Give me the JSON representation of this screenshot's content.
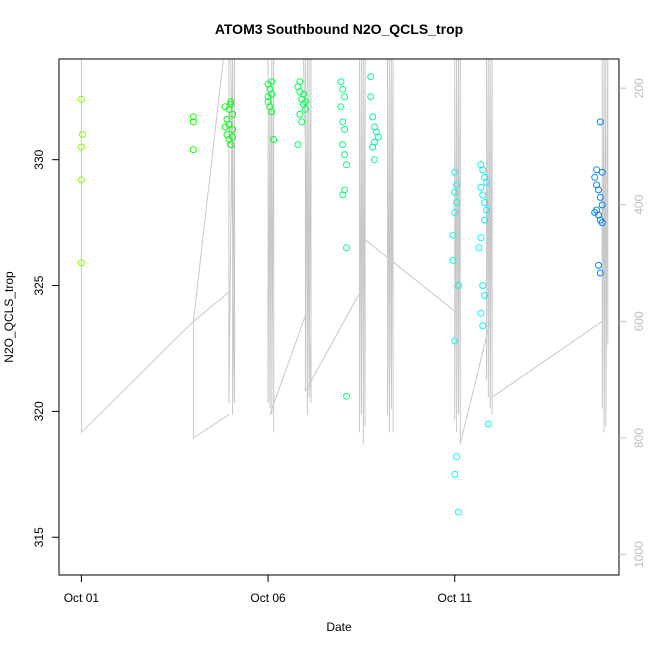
{
  "chart_data": {
    "type": "scatter",
    "title": "ATOM3 Southbound N2O_QCLS_trop",
    "xlabel": "Date",
    "ylabel": "N2O_QCLS_trop",
    "x_unit": "days after Oct 01",
    "xlim": [
      -0.6,
      14.4
    ],
    "ylim": [
      313.5,
      334
    ],
    "y2lim": [
      1035,
      150
    ],
    "x_ticks": [
      {
        "label": "Oct 01",
        "value": 0
      },
      {
        "label": "Oct 06",
        "value": 5
      },
      {
        "label": "Oct 11",
        "value": 10
      }
    ],
    "y_ticks": [
      {
        "label": "315",
        "value": 315
      },
      {
        "label": "320",
        "value": 320
      },
      {
        "label": "325",
        "value": 325
      },
      {
        "label": "330",
        "value": 330
      }
    ],
    "y2_ticks": [
      {
        "label": "200",
        "value": 200
      },
      {
        "label": "400",
        "value": 400
      },
      {
        "label": "600",
        "value": 600
      },
      {
        "label": "800",
        "value": 800
      },
      {
        "label": "1000",
        "value": 1000
      }
    ],
    "points": [
      [
        0.0,
        332.4
      ],
      [
        0.03,
        331.0
      ],
      [
        0.0,
        330.5
      ],
      [
        0.0,
        329.2
      ],
      [
        0.0,
        325.9
      ],
      [
        3.0,
        331.7
      ],
      [
        3.0,
        331.5
      ],
      [
        3.0,
        330.4
      ],
      [
        3.85,
        331.3
      ],
      [
        3.9,
        331.6
      ],
      [
        3.95,
        332.0
      ],
      [
        4.0,
        332.2
      ],
      [
        4.05,
        331.8
      ],
      [
        3.9,
        331.0
      ],
      [
        3.95,
        330.8
      ],
      [
        4.0,
        330.6
      ],
      [
        4.05,
        331.2
      ],
      [
        3.85,
        332.1
      ],
      [
        4.0,
        332.3
      ],
      [
        4.05,
        330.9
      ],
      [
        3.95,
        331.4
      ],
      [
        5.0,
        333.0
      ],
      [
        5.05,
        332.8
      ],
      [
        5.1,
        332.6
      ],
      [
        5.0,
        332.3
      ],
      [
        5.05,
        332.1
      ],
      [
        5.1,
        331.9
      ],
      [
        5.0,
        332.5
      ],
      [
        5.15,
        330.8
      ],
      [
        5.1,
        333.1
      ],
      [
        5.8,
        332.9
      ],
      [
        5.85,
        332.7
      ],
      [
        5.9,
        332.4
      ],
      [
        5.95,
        332.2
      ],
      [
        6.0,
        332.0
      ],
      [
        5.85,
        331.8
      ],
      [
        5.9,
        331.5
      ],
      [
        5.95,
        332.6
      ],
      [
        6.0,
        332.3
      ],
      [
        5.8,
        330.6
      ],
      [
        5.85,
        333.1
      ],
      [
        6.95,
        333.1
      ],
      [
        7.0,
        332.8
      ],
      [
        7.05,
        332.5
      ],
      [
        6.95,
        332.1
      ],
      [
        7.0,
        331.5
      ],
      [
        7.05,
        331.2
      ],
      [
        7.0,
        330.6
      ],
      [
        7.05,
        330.2
      ],
      [
        7.1,
        329.8
      ],
      [
        7.05,
        328.8
      ],
      [
        7.0,
        328.6
      ],
      [
        7.1,
        326.5
      ],
      [
        7.1,
        320.6
      ],
      [
        7.75,
        333.3
      ],
      [
        7.8,
        331.7
      ],
      [
        7.85,
        331.3
      ],
      [
        7.9,
        331.1
      ],
      [
        7.95,
        330.9
      ],
      [
        7.85,
        330.7
      ],
      [
        7.75,
        332.5
      ],
      [
        7.8,
        330.5
      ],
      [
        7.85,
        330.0
      ],
      [
        10.0,
        329.5
      ],
      [
        10.05,
        329.0
      ],
      [
        10.0,
        328.7
      ],
      [
        10.05,
        328.3
      ],
      [
        10.0,
        327.9
      ],
      [
        10.1,
        325.0
      ],
      [
        10.0,
        322.8
      ],
      [
        10.05,
        318.2
      ],
      [
        10.0,
        317.5
      ],
      [
        10.1,
        316.0
      ],
      [
        9.95,
        326.0
      ],
      [
        9.95,
        327.0
      ],
      [
        10.7,
        329.8
      ],
      [
        10.75,
        329.6
      ],
      [
        10.8,
        329.3
      ],
      [
        10.85,
        329.1
      ],
      [
        10.7,
        328.9
      ],
      [
        10.75,
        328.6
      ],
      [
        10.8,
        328.3
      ],
      [
        10.85,
        328.0
      ],
      [
        10.8,
        327.6
      ],
      [
        10.75,
        325.0
      ],
      [
        10.8,
        324.6
      ],
      [
        10.7,
        323.9
      ],
      [
        10.75,
        323.4
      ],
      [
        10.9,
        319.5
      ],
      [
        10.65,
        326.5
      ],
      [
        10.7,
        326.9
      ],
      [
        13.75,
        329.3
      ],
      [
        13.8,
        329.0
      ],
      [
        13.85,
        328.8
      ],
      [
        13.9,
        328.5
      ],
      [
        13.95,
        328.2
      ],
      [
        13.8,
        328.0
      ],
      [
        13.85,
        327.8
      ],
      [
        13.9,
        327.6
      ],
      [
        13.95,
        329.5
      ],
      [
        13.8,
        329.6
      ],
      [
        13.85,
        325.8
      ],
      [
        13.9,
        325.5
      ],
      [
        13.75,
        327.9
      ],
      [
        13.95,
        327.5
      ],
      [
        13.9,
        331.5
      ]
    ],
    "pressure_lines": [
      [
        [
          0,
          150
        ],
        [
          0,
          790
        ],
        [
          3,
          600
        ],
        [
          3.95,
          550
        ]
      ],
      [
        [
          3.95,
          150
        ],
        [
          3.95,
          740
        ],
        [
          4.05,
          150
        ],
        [
          4.05,
          760
        ],
        [
          4.1,
          150
        ],
        [
          4.1,
          740
        ],
        [
          4.0,
          150
        ]
      ],
      [
        [
          3.95,
          760
        ],
        [
          3.0,
          800
        ],
        [
          3.0,
          600
        ],
        [
          3.8,
          150
        ]
      ],
      [
        [
          5.0,
          150
        ],
        [
          5.0,
          740
        ],
        [
          5.05,
          200
        ],
        [
          5.05,
          750
        ],
        [
          5.1,
          150
        ],
        [
          5.1,
          760
        ],
        [
          5.15,
          150
        ],
        [
          5.15,
          790
        ]
      ],
      [
        [
          5.05,
          760
        ],
        [
          6.0,
          590
        ]
      ],
      [
        [
          6.0,
          150
        ],
        [
          6.0,
          720
        ],
        [
          6.05,
          150
        ],
        [
          6.05,
          760
        ],
        [
          6.1,
          150
        ],
        [
          6.1,
          730
        ],
        [
          6.15,
          150
        ],
        [
          6.15,
          740
        ],
        [
          5.95,
          150
        ]
      ],
      [
        [
          6.0,
          720
        ],
        [
          7.55,
          540
        ]
      ],
      [
        [
          7.45,
          150
        ],
        [
          7.45,
          790
        ],
        [
          7.5,
          150
        ],
        [
          7.5,
          760
        ],
        [
          7.55,
          150
        ],
        [
          7.55,
          810
        ],
        [
          7.6,
          150
        ],
        [
          7.6,
          780
        ]
      ],
      [
        [
          8.2,
          150
        ],
        [
          8.2,
          760
        ],
        [
          8.25,
          150
        ],
        [
          8.25,
          790
        ],
        [
          8.3,
          150
        ],
        [
          8.3,
          750
        ],
        [
          8.35,
          150
        ],
        [
          8.35,
          790
        ]
      ],
      [
        [
          7.6,
          460
        ],
        [
          10.15,
          590
        ]
      ],
      [
        [
          10.0,
          150
        ],
        [
          10.0,
          770
        ],
        [
          10.05,
          150
        ],
        [
          10.05,
          790
        ],
        [
          10.1,
          150
        ],
        [
          10.1,
          760
        ],
        [
          10.15,
          150
        ],
        [
          10.15,
          810
        ]
      ],
      [
        [
          10.15,
          810
        ],
        [
          10.95,
          600
        ]
      ],
      [
        [
          10.85,
          150
        ],
        [
          10.85,
          700
        ],
        [
          10.9,
          150
        ],
        [
          10.9,
          730
        ],
        [
          10.95,
          150
        ],
        [
          10.95,
          750
        ],
        [
          11.0,
          150
        ],
        [
          11.0,
          760
        ]
      ],
      [
        [
          11.0,
          730
        ],
        [
          13.95,
          600
        ]
      ],
      [
        [
          13.95,
          150
        ],
        [
          13.95,
          750
        ],
        [
          14.0,
          150
        ],
        [
          14.0,
          790
        ],
        [
          14.05,
          150
        ],
        [
          14.05,
          780
        ],
        [
          14.1,
          150
        ],
        [
          14.1,
          640
        ]
      ]
    ]
  }
}
